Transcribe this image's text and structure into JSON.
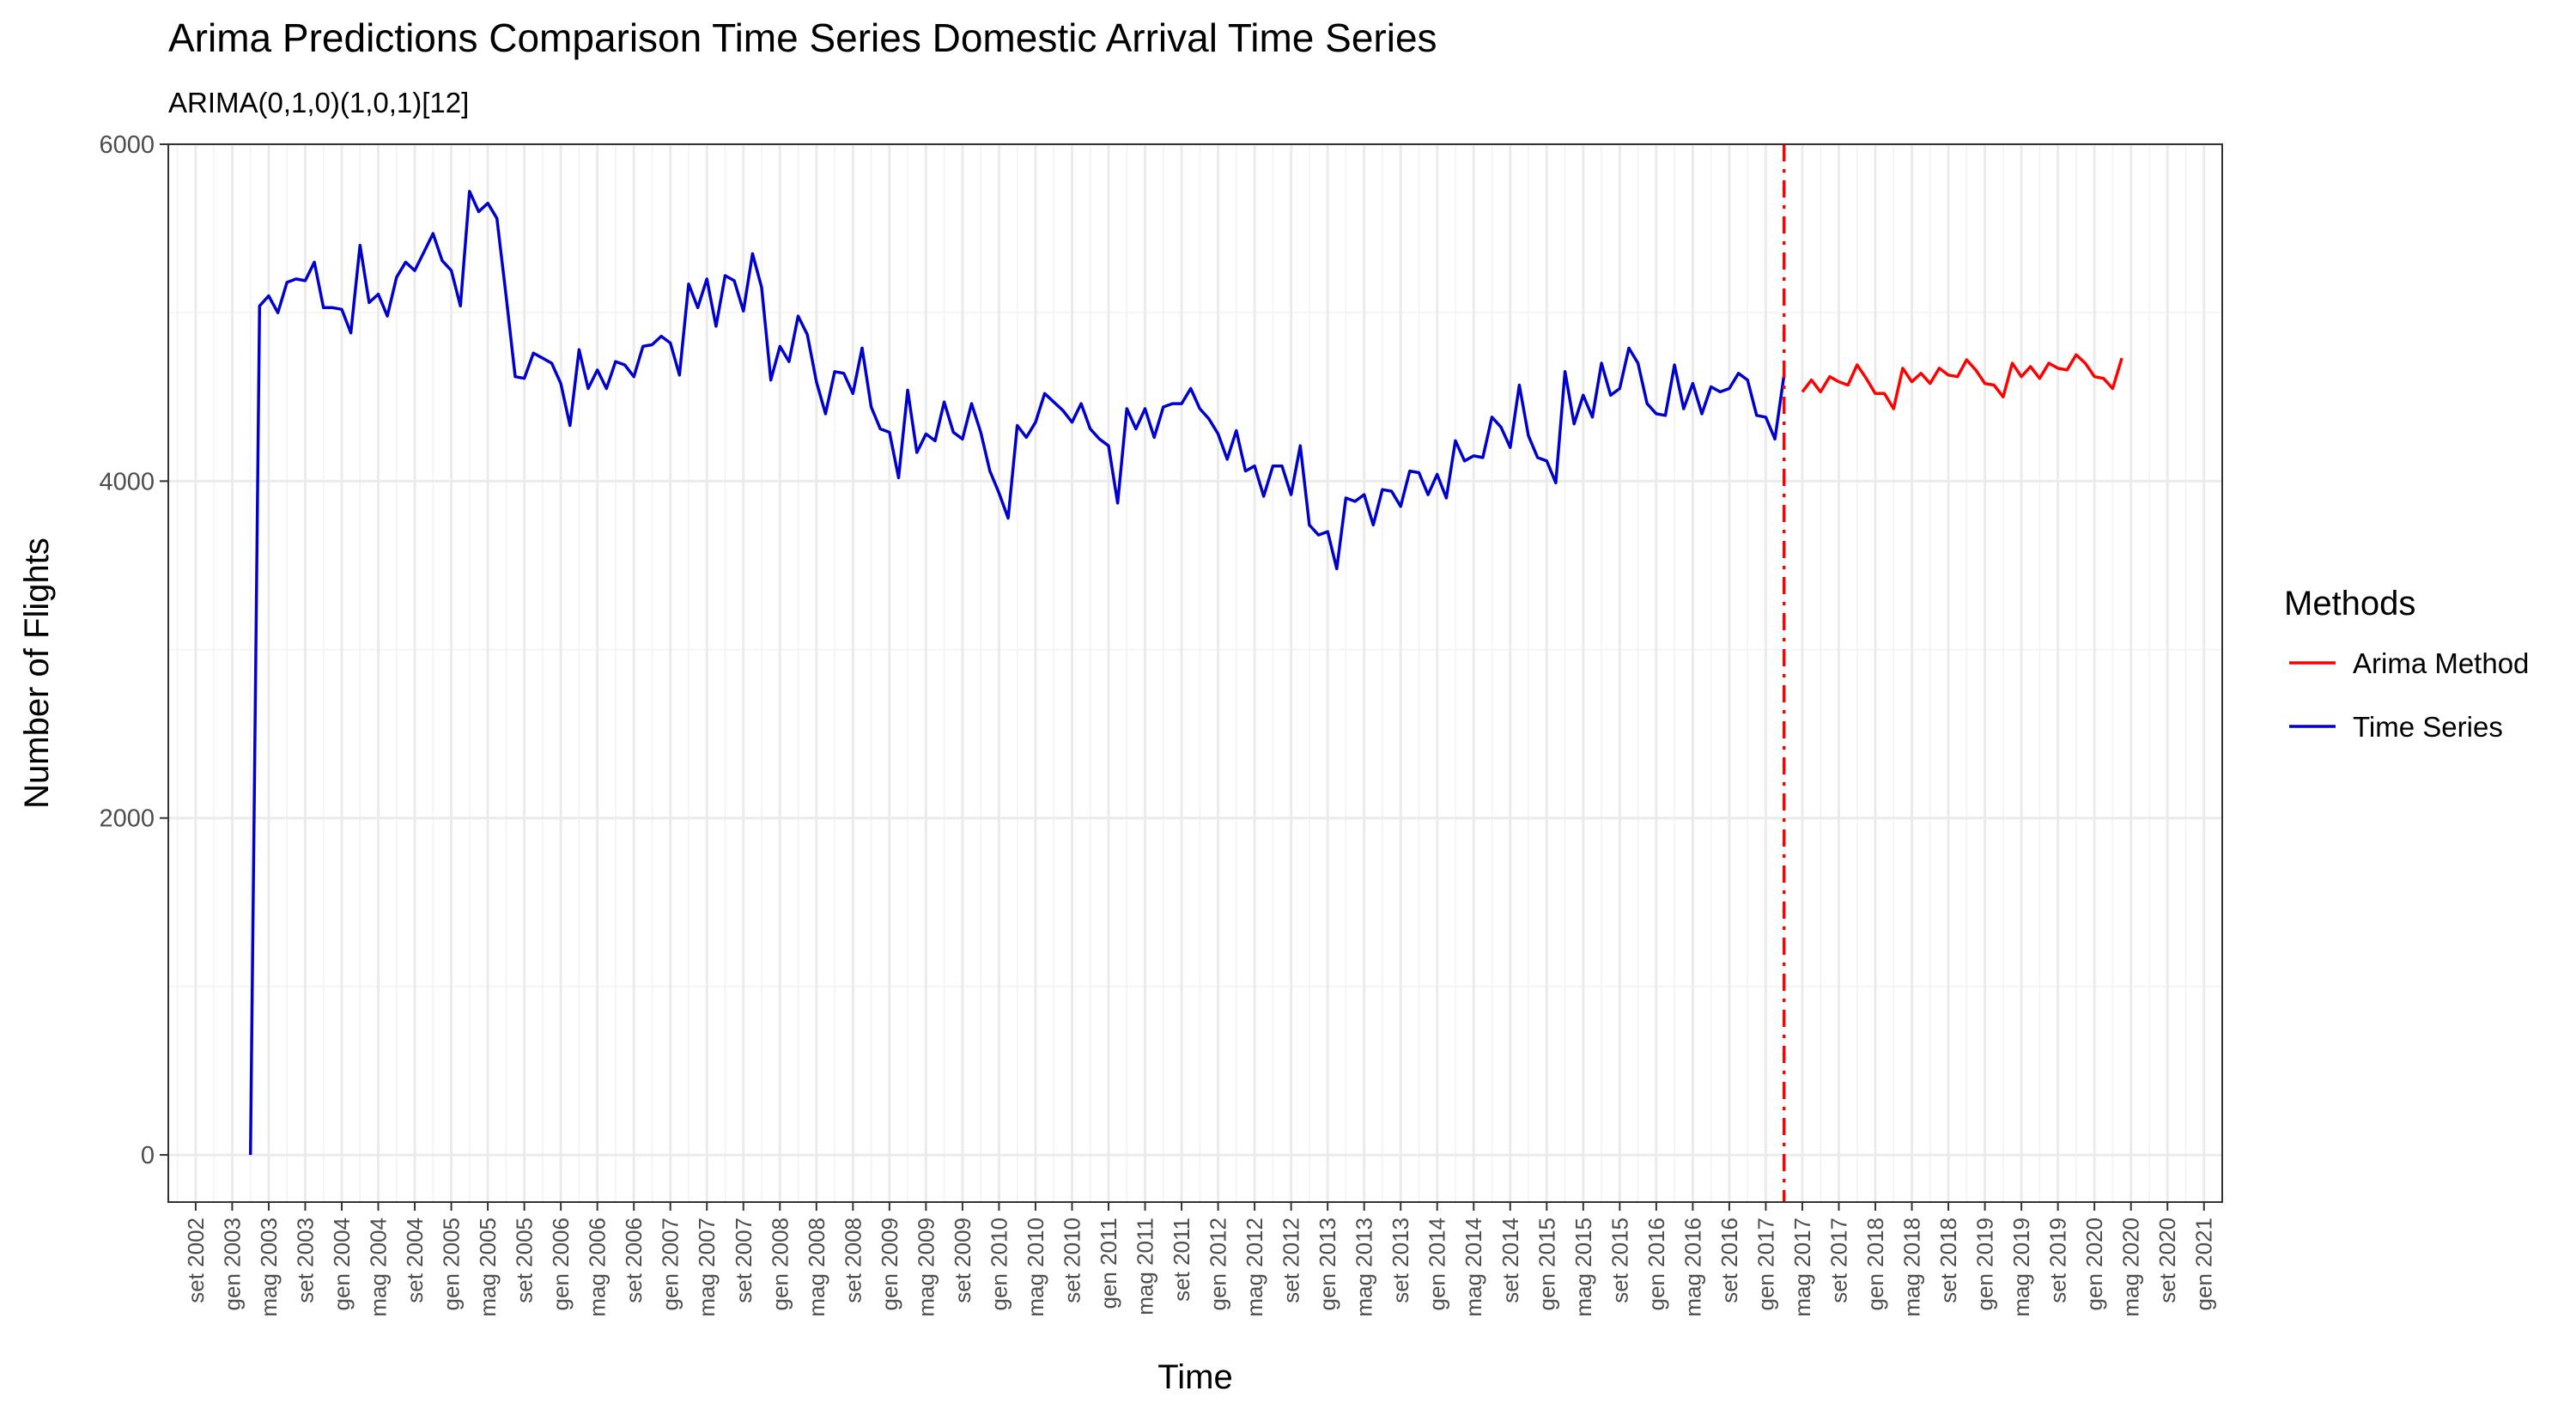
{
  "chart_data": {
    "type": "line",
    "title": "Arima Predictions Comparison Time Series Domestic Arrival Time Series",
    "subtitle": "ARIMA(0,1,0)(1,0,1)[12]",
    "xlabel": "Time",
    "ylabel": "Number of Flights",
    "ylim": [
      -280,
      6000
    ],
    "y_ticks": [
      0,
      2000,
      4000,
      6000
    ],
    "y_tick_labels": [
      "0",
      "2000",
      "4000",
      "6000"
    ],
    "xlim": [
      "2002-06",
      "2021-03"
    ],
    "x_tick_labels": [
      "set 2002",
      "gen 2003",
      "mag 2003",
      "set 2003",
      "gen 2004",
      "mag 2004",
      "set 2004",
      "gen 2005",
      "mag 2005",
      "set 2005",
      "gen 2006",
      "mag 2006",
      "set 2006",
      "gen 2007",
      "mag 2007",
      "set 2007",
      "gen 2008",
      "mag 2008",
      "set 2008",
      "gen 2009",
      "mag 2009",
      "set 2009",
      "gen 2010",
      "mag 2010",
      "set 2010",
      "gen 2011",
      "mag 2011",
      "set 2011",
      "gen 2012",
      "mag 2012",
      "set 2012",
      "gen 2013",
      "mag 2013",
      "set 2013",
      "gen 2014",
      "mag 2014",
      "set 2014",
      "gen 2015",
      "mag 2015",
      "set 2015",
      "gen 2016",
      "mag 2016",
      "set 2016",
      "gen 2017",
      "mag 2017",
      "set 2017",
      "gen 2018",
      "mag 2018",
      "set 2018",
      "gen 2019",
      "mag 2019",
      "set 2019",
      "gen 2020",
      "mag 2020",
      "set 2020",
      "gen 2021"
    ],
    "x_ticks_start": "2002-09",
    "x_tick_step_months": 4,
    "grid": true,
    "legend_position": "right",
    "legend_title": "Methods",
    "forecast_start_line": {
      "x": "2017-03",
      "color": "#ff0000",
      "style": "dotdash"
    },
    "series": [
      {
        "name": "Time Series",
        "color": "#0000cd",
        "start": "2003-03",
        "values": [
          0,
          5040,
          5100,
          5000,
          5180,
          5200,
          5190,
          5300,
          5030,
          5030,
          5020,
          4880,
          5400,
          5060,
          5110,
          4980,
          5210,
          5300,
          5250,
          5360,
          5470,
          5310,
          5250,
          5040,
          5720,
          5600,
          5650,
          5560,
          5100,
          4620,
          4610,
          4760,
          4730,
          4700,
          4580,
          4330,
          4780,
          4550,
          4660,
          4550,
          4710,
          4690,
          4620,
          4800,
          4810,
          4860,
          4820,
          4630,
          5170,
          5030,
          5200,
          4920,
          5220,
          5190,
          5010,
          5350,
          5150,
          4600,
          4800,
          4710,
          4980,
          4870,
          4590,
          4400,
          4650,
          4640,
          4520,
          4790,
          4440,
          4310,
          4290,
          4020,
          4540,
          4170,
          4280,
          4240,
          4470,
          4290,
          4250,
          4460,
          4290,
          4060,
          3930,
          3780,
          4330,
          4260,
          4350,
          4520,
          4470,
          4420,
          4350,
          4460,
          4310,
          4250,
          4210,
          3870,
          4430,
          4310,
          4430,
          4260,
          4440,
          4460,
          4460,
          4550,
          4430,
          4370,
          4280,
          4130,
          4300,
          4060,
          4090,
          3910,
          4090,
          4090,
          3920,
          4210,
          3740,
          3680,
          3700,
          3480,
          3900,
          3880,
          3920,
          3740,
          3950,
          3940,
          3850,
          4060,
          4050,
          3920,
          4040,
          3900,
          4240,
          4120,
          4150,
          4140,
          4380,
          4320,
          4200,
          4570,
          4270,
          4140,
          4120,
          3990,
          4650,
          4340,
          4510,
          4380,
          4700,
          4510,
          4550,
          4790,
          4700,
          4460,
          4400,
          4390,
          4690,
          4430,
          4580,
          4400,
          4560,
          4530,
          4550,
          4640,
          4600,
          4390,
          4380,
          4250,
          4630
        ]
      },
      {
        "name": "Arima Method",
        "color": "#ff0000",
        "start": "2017-05",
        "values": [
          4530,
          4600,
          4530,
          4620,
          4590,
          4570,
          4690,
          4610,
          4520,
          4520,
          4430,
          4670,
          4590,
          4640,
          4580,
          4670,
          4630,
          4620,
          4720,
          4660,
          4580,
          4570,
          4500,
          4700,
          4620,
          4680,
          4610,
          4700,
          4670,
          4660,
          4750,
          4700,
          4620,
          4610,
          4550,
          4730
        ]
      }
    ]
  }
}
